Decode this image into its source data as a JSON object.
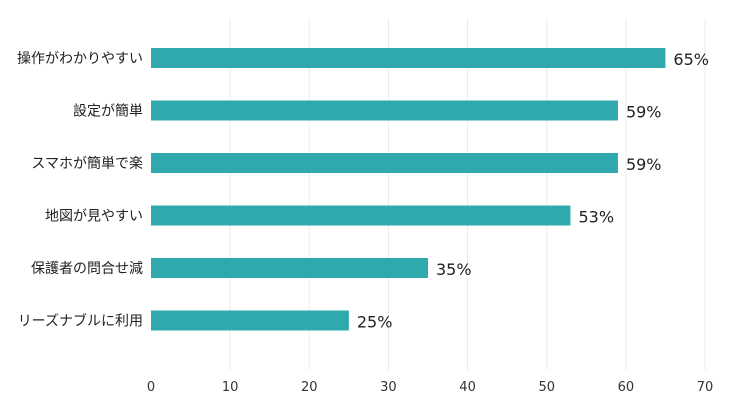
{
  "chart_data": {
    "type": "bar",
    "orientation": "horizontal",
    "categories": [
      "操作がわかりやすい",
      "設定が簡単",
      "スマホが簡単で楽",
      "地図が見やすい",
      "保護者の問合せ減",
      "リーズナブルに利用"
    ],
    "values": [
      65,
      59,
      59,
      53,
      35,
      25
    ],
    "value_labels": [
      "65%",
      "59%",
      "59%",
      "53%",
      "35%",
      "25%"
    ],
    "xlim": [
      0,
      70
    ],
    "xticks": [
      "0",
      "10",
      "20",
      "30",
      "40",
      "50",
      "60",
      "70"
    ],
    "grid": "vertical",
    "bar_color": "#2fa8ae",
    "title": "",
    "xlabel": "",
    "ylabel": ""
  }
}
